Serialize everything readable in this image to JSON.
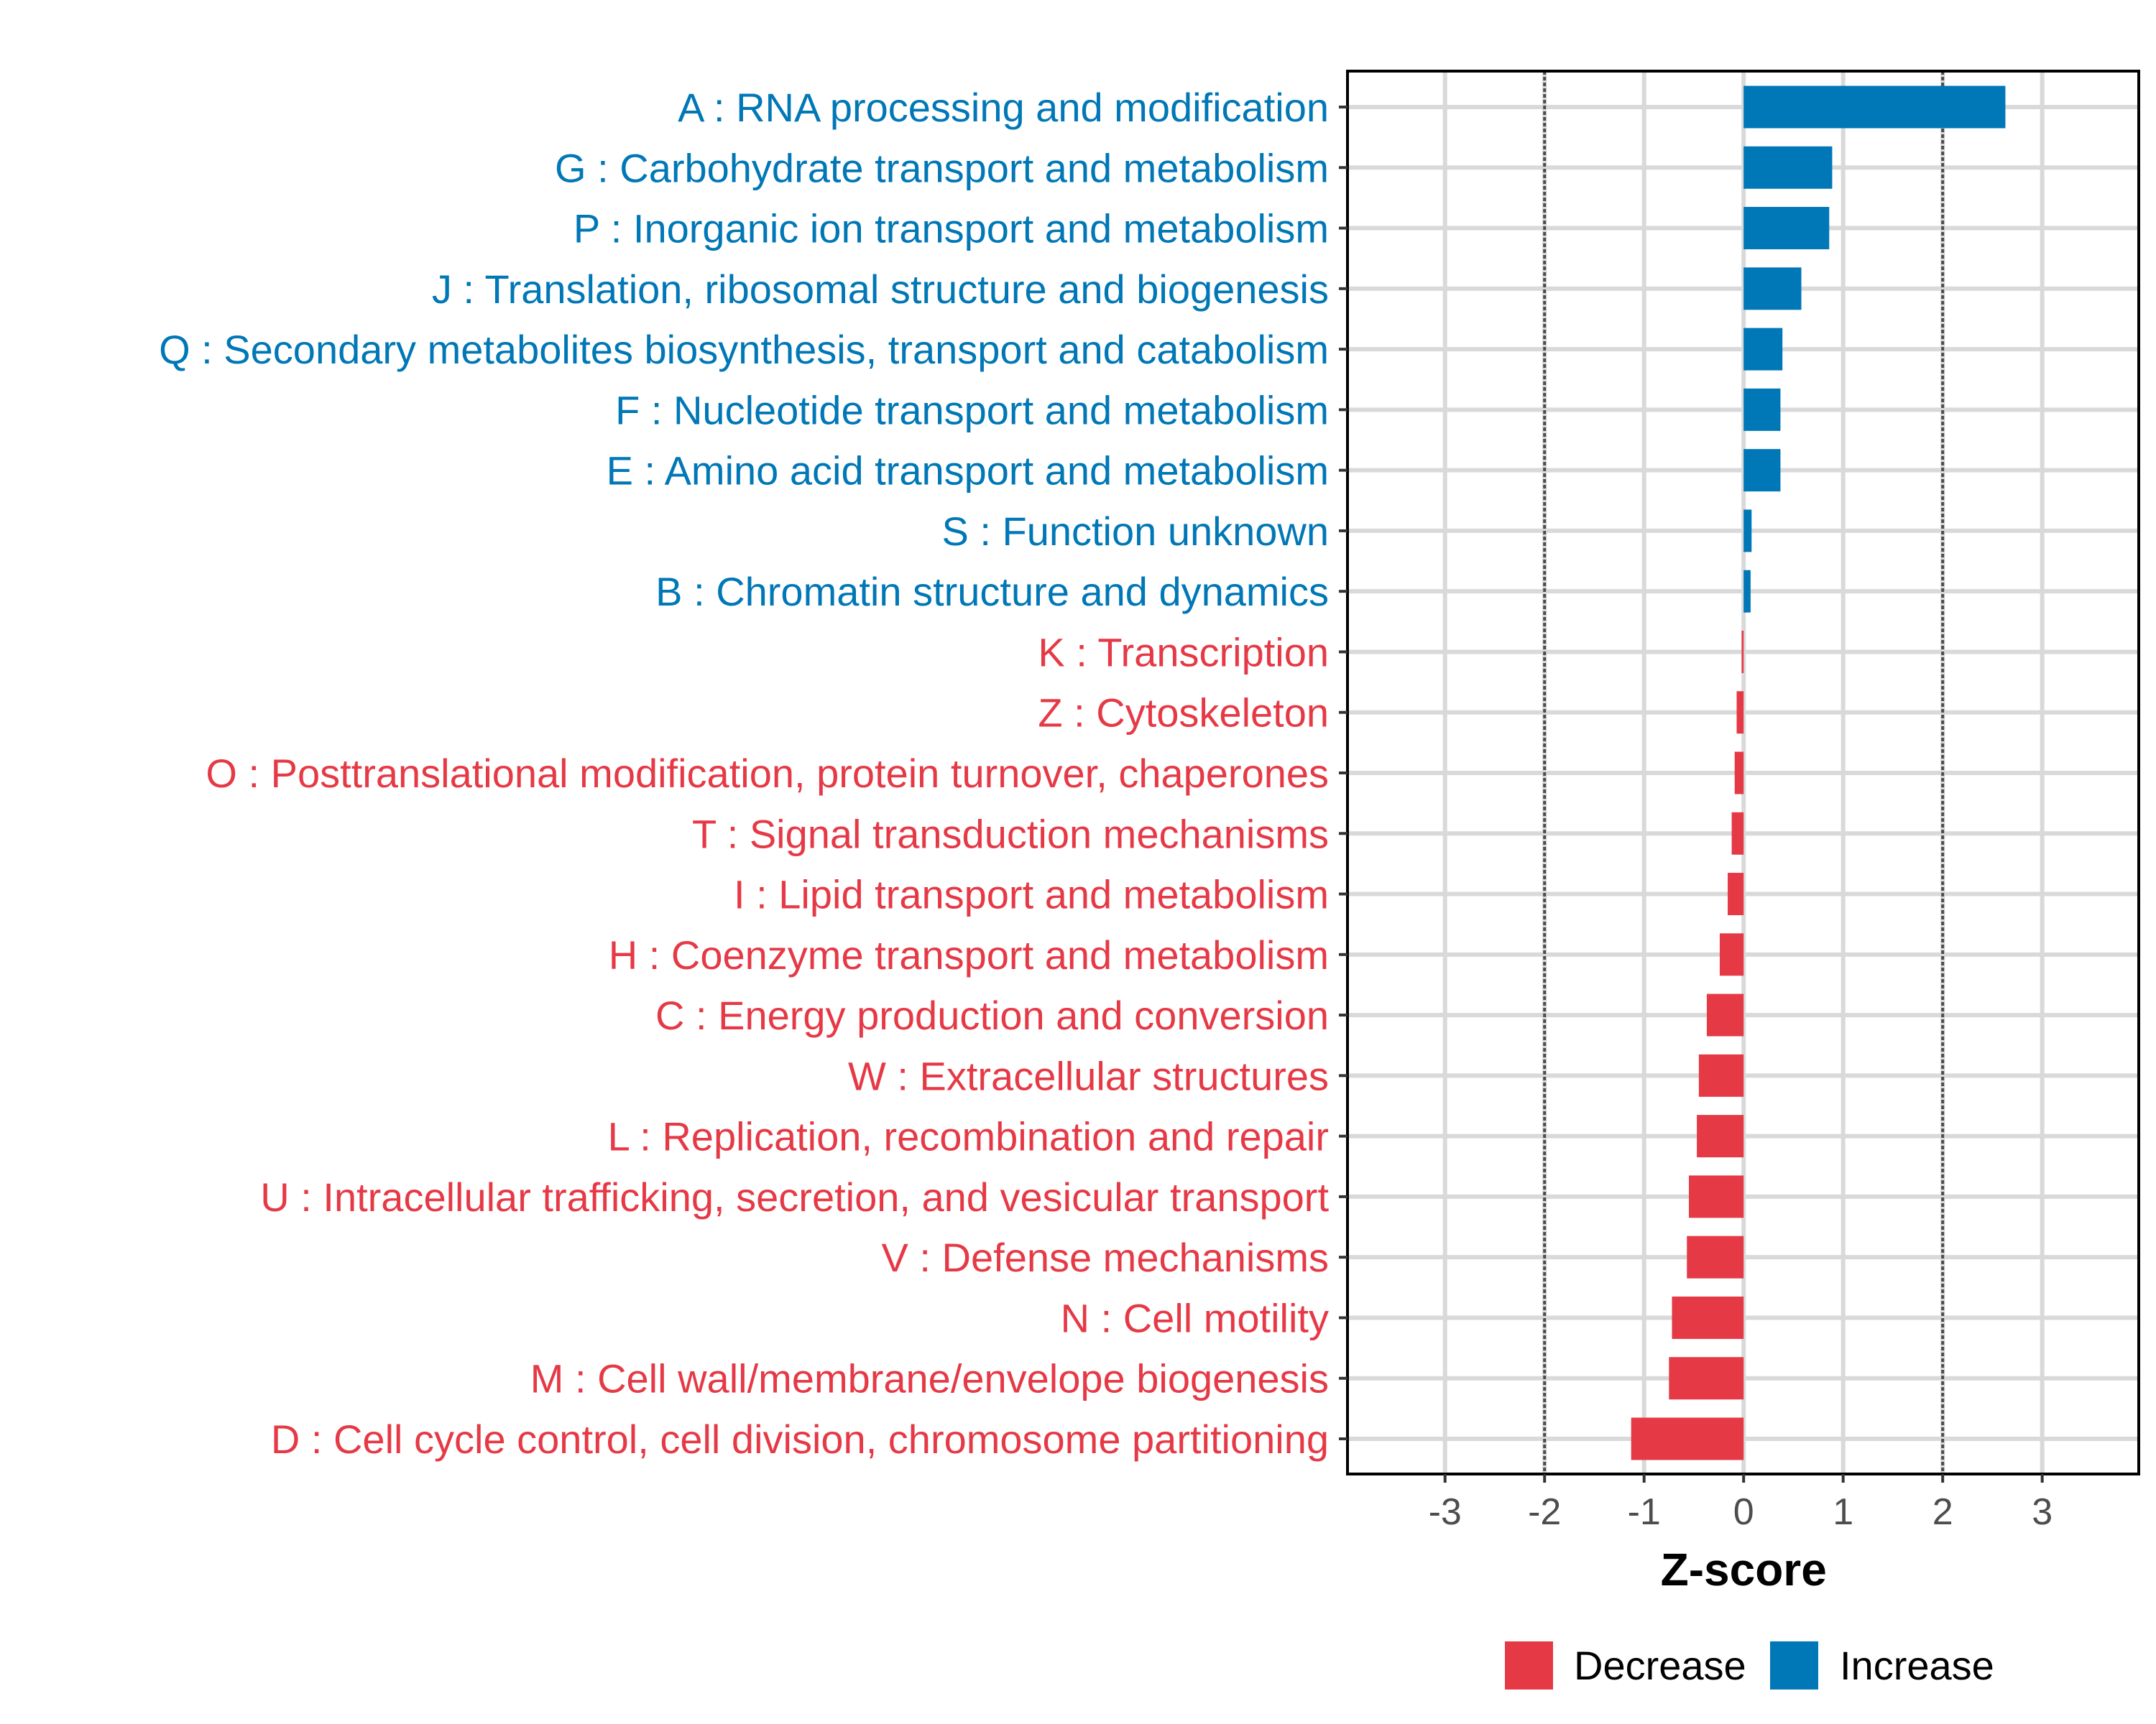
{
  "chart_data": {
    "type": "bar",
    "orientation": "horizontal",
    "title": "",
    "xlabel": "Z-score",
    "ylabel": "",
    "xlim": [
      -3.98,
      3.97
    ],
    "xticks": [
      -3,
      -2,
      -1,
      0,
      1,
      2,
      3
    ],
    "xtick_labels": [
      "-3",
      "-2",
      "-1",
      "0",
      "1",
      "2",
      "3"
    ],
    "reference_lines": [
      {
        "x": -2,
        "style": "dotted"
      },
      {
        "x": 2,
        "style": "dotted"
      }
    ],
    "grid": true,
    "legend": {
      "placement": "bottom",
      "entries": [
        {
          "label": "Decrease",
          "color": "#E63946"
        },
        {
          "label": "Increase",
          "color": "#0077B6"
        }
      ]
    },
    "categories": [
      "A : RNA processing and modification",
      "G : Carbohydrate transport and metabolism",
      "P : Inorganic ion transport and metabolism",
      "J : Translation, ribosomal structure and biogenesis",
      "Q : Secondary metabolites biosynthesis, transport and catabolism",
      "F : Nucleotide transport and metabolism",
      "E : Amino acid transport and metabolism",
      "S : Function unknown",
      "B : Chromatin structure and dynamics",
      "K : Transcription",
      "Z : Cytoskeleton",
      "O : Posttranslational modification, protein turnover, chaperones",
      "T : Signal transduction mechanisms",
      "I : Lipid transport and metabolism",
      "H : Coenzyme transport and metabolism",
      "C : Energy production and conversion",
      "W : Extracellular structures",
      "L : Replication, recombination and repair",
      "U : Intracellular trafficking, secretion, and vesicular transport",
      "V : Defense mechanisms",
      "N : Cell motility",
      "M : Cell wall/membrane/envelope biogenesis",
      "D : Cell cycle control, cell division, chromosome partitioning"
    ],
    "values": [
      2.63,
      0.89,
      0.86,
      0.58,
      0.39,
      0.37,
      0.37,
      0.08,
      0.07,
      -0.02,
      -0.07,
      -0.09,
      -0.12,
      -0.16,
      -0.24,
      -0.37,
      -0.45,
      -0.47,
      -0.55,
      -0.57,
      -0.72,
      -0.75,
      -1.13
    ],
    "groups": [
      "Increase",
      "Increase",
      "Increase",
      "Increase",
      "Increase",
      "Increase",
      "Increase",
      "Increase",
      "Increase",
      "Decrease",
      "Decrease",
      "Decrease",
      "Decrease",
      "Decrease",
      "Decrease",
      "Decrease",
      "Decrease",
      "Decrease",
      "Decrease",
      "Decrease",
      "Decrease",
      "Decrease",
      "Decrease"
    ]
  },
  "colors": {
    "Increase": "#0077B6",
    "Decrease": "#E63946",
    "grid": "#D9D9D9",
    "refline": "#4D4D4D",
    "tick_text": "#4D4D4D",
    "axis": "#000000"
  }
}
